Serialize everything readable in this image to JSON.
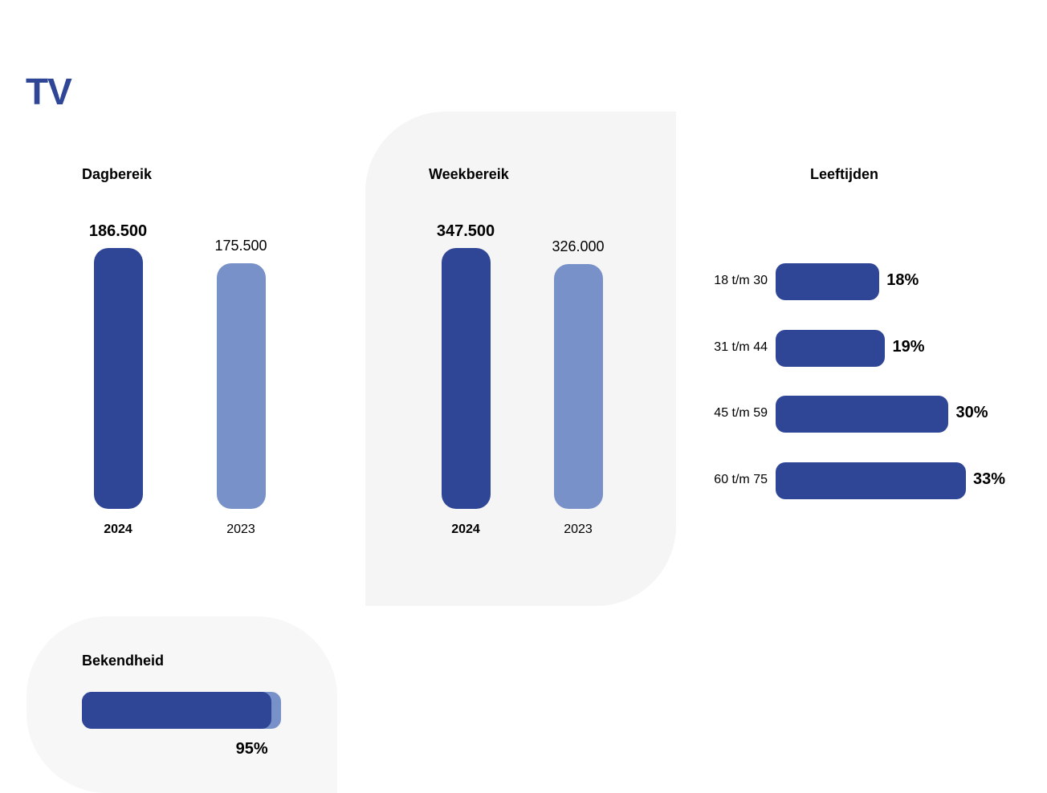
{
  "page": {
    "title": "TV"
  },
  "colors": {
    "primary": "#2f4596",
    "secondary": "#7891c8",
    "panel": "#f5f5f5"
  },
  "chart_data": [
    {
      "type": "bar",
      "title": "Dagbereik",
      "categories": [
        "2024",
        "2023"
      ],
      "values": [
        186500,
        175500
      ],
      "value_labels": [
        "186.500",
        "175.500"
      ]
    },
    {
      "type": "bar",
      "title": "Weekbereik",
      "categories": [
        "2024",
        "2023"
      ],
      "values": [
        347500,
        326000
      ],
      "value_labels": [
        "347.500",
        "326.000"
      ]
    },
    {
      "type": "bar",
      "orientation": "horizontal",
      "title": "Leeftijden",
      "categories": [
        "18 t/m 30",
        "31 t/m 44",
        "45 t/m 59",
        "60 t/m 75"
      ],
      "values": [
        18,
        19,
        30,
        33
      ],
      "value_labels": [
        "18%",
        "19%",
        "30%",
        "33%"
      ]
    },
    {
      "type": "bar",
      "orientation": "horizontal",
      "title": "Bekendheid",
      "values": [
        95
      ],
      "value_labels": [
        "95%"
      ]
    }
  ]
}
